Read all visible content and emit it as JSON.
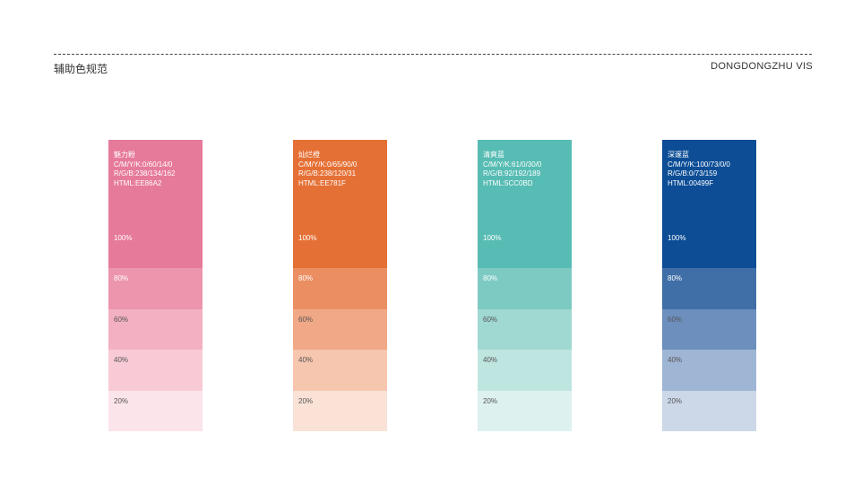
{
  "header": {
    "title": "辅助色规范",
    "brand": "DONGDONGZHU  VIS"
  },
  "colors": [
    {
      "name": "魅力粉",
      "cmyk": "C/M/Y/K:0/60/14/0",
      "rgb": "R/G/B:238/134/162",
      "html": "HTML:EE86A2",
      "tints": [
        {
          "label": "100%",
          "color": "#e67a9a",
          "text": "#ffffff"
        },
        {
          "label": "80%",
          "color": "#ec95ad",
          "text": "#ffffff"
        },
        {
          "label": "60%",
          "color": "#f2b0c2",
          "text": "#555555"
        },
        {
          "label": "40%",
          "color": "#f7cad6",
          "text": "#555555"
        },
        {
          "label": "20%",
          "color": "#fbe4ea",
          "text": "#555555"
        }
      ]
    },
    {
      "name": "灿烂橙",
      "cmyk": "C/M/Y/K:0/65/90/0",
      "rgb": "R/G/B:238/120/31",
      "html": "HTML:EE781F",
      "tints": [
        {
          "label": "100%",
          "color": "#e57035",
          "text": "#ffffff"
        },
        {
          "label": "80%",
          "color": "#eb8f62",
          "text": "#ffffff"
        },
        {
          "label": "60%",
          "color": "#f0a886",
          "text": "#555555"
        },
        {
          "label": "40%",
          "color": "#f6c6ae",
          "text": "#555555"
        },
        {
          "label": "20%",
          "color": "#fae2d6",
          "text": "#555555"
        }
      ]
    },
    {
      "name": "清爽蓝",
      "cmyk": "C/M/Y/K:61/0/30/0",
      "rgb": "R/G/B:92/192/189",
      "html": "HTML:5CC0BD",
      "tints": [
        {
          "label": "100%",
          "color": "#57bcb3",
          "text": "#ffffff"
        },
        {
          "label": "80%",
          "color": "#7dcac3",
          "text": "#ffffff"
        },
        {
          "label": "60%",
          "color": "#a0d8d2",
          "text": "#555555"
        },
        {
          "label": "40%",
          "color": "#bfe5e1",
          "text": "#555555"
        },
        {
          "label": "20%",
          "color": "#ddf1ef",
          "text": "#555555"
        }
      ]
    },
    {
      "name": "深邃蓝",
      "cmyk": "C/M/Y/K:100/73/0/0",
      "rgb": "R/G/B:0/73/159",
      "html": "HTML:00499F",
      "tints": [
        {
          "label": "100%",
          "color": "#0c4d96",
          "text": "#ffffff"
        },
        {
          "label": "80%",
          "color": "#406fa8",
          "text": "#ffffff"
        },
        {
          "label": "60%",
          "color": "#6c8fbd",
          "text": "#555555"
        },
        {
          "label": "40%",
          "color": "#9fb5d4",
          "text": "#555555"
        },
        {
          "label": "20%",
          "color": "#ccd8e8",
          "text": "#555555"
        }
      ]
    }
  ]
}
